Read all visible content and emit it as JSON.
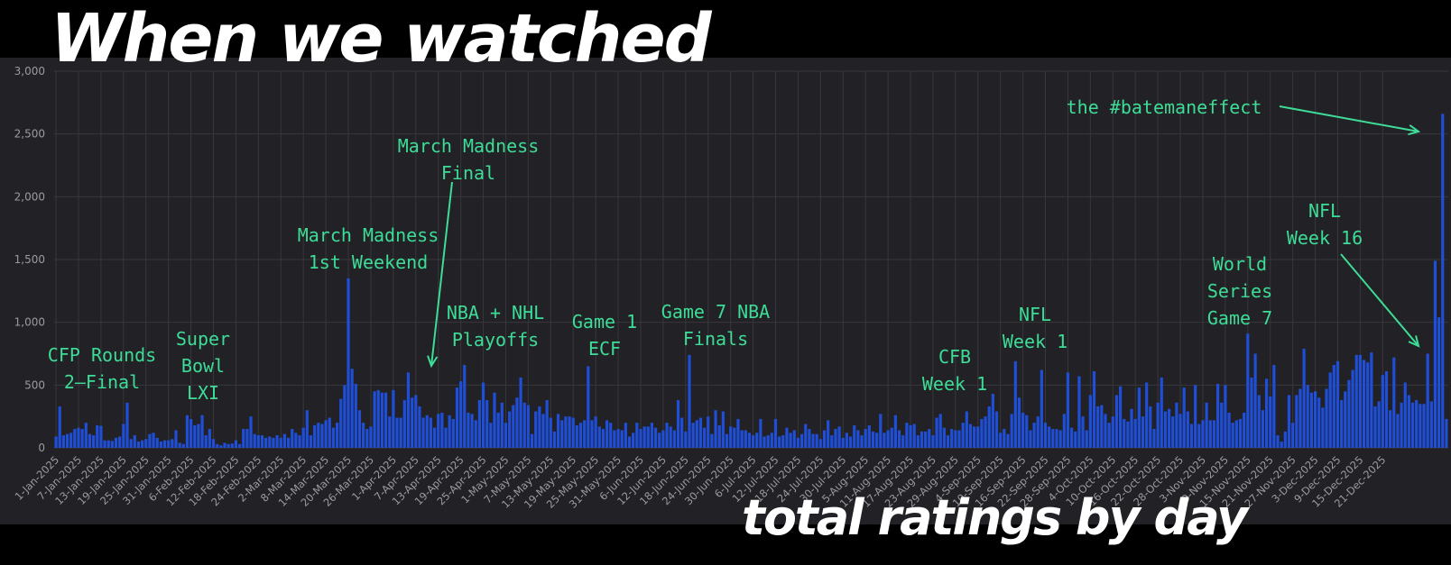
{
  "title": "When we watched",
  "subtitle": "total ratings by day",
  "colors": {
    "bar": "#1f4fd8",
    "annotation": "#3ddc97",
    "panel": "#222226",
    "grid": "#37373c",
    "tick_label": "#9a9aa0"
  },
  "chart_data": {
    "type": "bar",
    "title": "When we watched",
    "subtitle": "total ratings by day",
    "xlabel": "",
    "ylabel": "",
    "ylim": [
      0,
      3000
    ],
    "y_ticks": [
      "0",
      "500",
      "1,000",
      "1,500",
      "2,000",
      "2,500",
      "3,000"
    ],
    "y_tick_values": [
      0,
      500,
      1000,
      1500,
      2000,
      2500,
      3000
    ],
    "grid": true,
    "x_tick_labels": [
      "1-Jan-2025",
      "7-Jan-2025",
      "13-Jan-2025",
      "19-Jan-2025",
      "25-Jan-2025",
      "31-Jan-2025",
      "6-Feb-2025",
      "12-Feb-2025",
      "18-Feb-2025",
      "24-Feb-2025",
      "2-Mar-2025",
      "8-Mar-2025",
      "14-Mar-2025",
      "20-Mar-2025",
      "26-Mar-2025",
      "1-Apr-2025",
      "7-Apr-2025",
      "13-Apr-2025",
      "19-Apr-2025",
      "25-Apr-2025",
      "1-May-2025",
      "7-May-2025",
      "13-May-2025",
      "19-May-2025",
      "25-May-2025",
      "31-May-2025",
      "6-Jun-2025",
      "12-Jun-2025",
      "18-Jun-2025",
      "24-Jun-2025",
      "30-Jun-2025",
      "6-Jul-2025",
      "12-Jul-2025",
      "18-Jul-2025",
      "24-Jul-2025",
      "30-Jul-2025",
      "5-Aug-2025",
      "11-Aug-2025",
      "17-Aug-2025",
      "23-Aug-2025",
      "29-Aug-2025",
      "4-Sep-2025",
      "10-Sep-2025",
      "16-Sep-2025",
      "22-Sep-2025",
      "28-Sep-2025",
      "4-Oct-2025",
      "10-Oct-2025",
      "16-Oct-2025",
      "22-Oct-2025",
      "28-Oct-2025",
      "3-Nov-2025",
      "9-Nov-2025",
      "15-Nov-2025",
      "21-Nov-2025",
      "27-Nov-2025",
      "3-Dec-2025",
      "9-Dec-2025",
      "15-Dec-2025",
      "21-Dec-2025"
    ],
    "x_start": "1-Jan-2025",
    "x_end": "27-Dec-2025",
    "values": [
      90,
      330,
      100,
      110,
      120,
      150,
      160,
      150,
      200,
      110,
      100,
      180,
      175,
      60,
      60,
      55,
      80,
      90,
      190,
      360,
      70,
      100,
      50,
      60,
      70,
      110,
      120,
      80,
      50,
      60,
      60,
      70,
      140,
      40,
      30,
      260,
      230,
      180,
      190,
      260,
      100,
      150,
      70,
      30,
      20,
      40,
      30,
      35,
      60,
      30,
      150,
      150,
      250,
      110,
      100,
      100,
      80,
      90,
      80,
      100,
      80,
      110,
      80,
      150,
      120,
      100,
      160,
      300,
      100,
      180,
      200,
      190,
      220,
      240,
      160,
      200,
      390,
      500,
      1350,
      630,
      510,
      300,
      200,
      150,
      170,
      450,
      460,
      440,
      440,
      250,
      460,
      240,
      240,
      380,
      600,
      400,
      420,
      330,
      240,
      260,
      240,
      160,
      270,
      280,
      160,
      260,
      230,
      480,
      530,
      660,
      280,
      270,
      220,
      380,
      520,
      380,
      200,
      440,
      280,
      360,
      200,
      290,
      340,
      400,
      560,
      360,
      340,
      110,
      290,
      330,
      270,
      380,
      240,
      130,
      270,
      220,
      250,
      250,
      240,
      180,
      200,
      220,
      650,
      220,
      250,
      170,
      150,
      220,
      200,
      140,
      150,
      140,
      200,
      90,
      120,
      200,
      150,
      170,
      170,
      200,
      160,
      120,
      140,
      200,
      170,
      140,
      380,
      240,
      130,
      740,
      200,
      220,
      240,
      160,
      250,
      110,
      300,
      180,
      290,
      110,
      170,
      160,
      230,
      140,
      140,
      120,
      100,
      120,
      230,
      90,
      100,
      120,
      230,
      90,
      100,
      160,
      120,
      140,
      80,
      110,
      190,
      150,
      110,
      110,
      70,
      140,
      220,
      100,
      150,
      170,
      80,
      120,
      90,
      180,
      140,
      100,
      150,
      180,
      130,
      120,
      270,
      120,
      140,
      160,
      260,
      140,
      100,
      200,
      180,
      190,
      100,
      130,
      130,
      150,
      100,
      240,
      270,
      160,
      100,
      150,
      140,
      140,
      200,
      290,
      190,
      170,
      170,
      230,
      250,
      330,
      430,
      290,
      120,
      150,
      110,
      270,
      690,
      400,
      280,
      260,
      140,
      200,
      250,
      620,
      200,
      170,
      150,
      150,
      140,
      270,
      600,
      160,
      130,
      570,
      250,
      140,
      420,
      610,
      330,
      340,
      270,
      200,
      250,
      420,
      490,
      230,
      210,
      310,
      230,
      480,
      250,
      520,
      330,
      150,
      360,
      560,
      290,
      310,
      250,
      360,
      270,
      480,
      290,
      190,
      500,
      190,
      220,
      360,
      220,
      220,
      510,
      360,
      500,
      280,
      200,
      220,
      230,
      280,
      910,
      560,
      750,
      420,
      300,
      550,
      410,
      660,
      100,
      50,
      130,
      420,
      200,
      420,
      470,
      790,
      500,
      440,
      450,
      400,
      320,
      470,
      600,
      660,
      690,
      380,
      450,
      540,
      620,
      740,
      740,
      700,
      680,
      760,
      330,
      370,
      580,
      610,
      300,
      720,
      270,
      360,
      520,
      420,
      360,
      380,
      350,
      350,
      750,
      370,
      1490,
      1040,
      2660,
      230
    ]
  },
  "annotations": [
    {
      "id": "cfp",
      "text": [
        "CFP Rounds",
        "2–Final"
      ]
    },
    {
      "id": "super-bowl",
      "text": [
        "Super",
        "Bowl",
        "LXI"
      ]
    },
    {
      "id": "march-madness-1st",
      "text": [
        "March Madness",
        "1st Weekend"
      ]
    },
    {
      "id": "march-madness-final",
      "text": [
        "March Madness",
        "Final"
      ]
    },
    {
      "id": "nba-nhl",
      "text": [
        "NBA + NHL",
        "Playoffs"
      ]
    },
    {
      "id": "game1-ecf",
      "text": [
        "Game 1",
        "ECF"
      ]
    },
    {
      "id": "game7-nba",
      "text": [
        "Game 7 NBA",
        "Finals"
      ]
    },
    {
      "id": "cfb-week1",
      "text": [
        "CFB",
        "Week 1"
      ]
    },
    {
      "id": "nfl-week1",
      "text": [
        "NFL",
        "Week 1"
      ]
    },
    {
      "id": "world-series",
      "text": [
        "World",
        "Series",
        "Game 7"
      ]
    },
    {
      "id": "nfl-week16",
      "text": [
        "NFL",
        "Week 16"
      ]
    },
    {
      "id": "bateman",
      "text": [
        "the #batemaneffect"
      ]
    }
  ]
}
